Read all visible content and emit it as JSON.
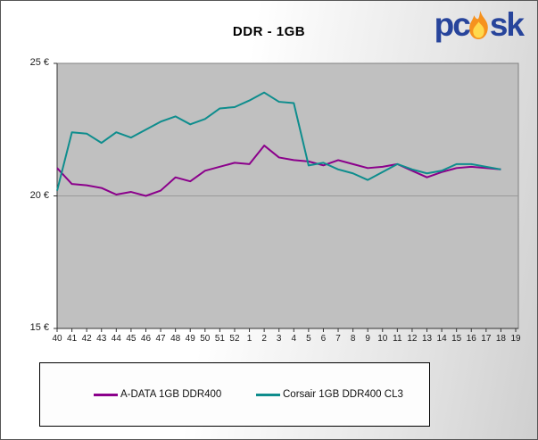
{
  "header": {
    "title": "DDR - 1GB",
    "logo": {
      "part1": "pc",
      "part2": "sk",
      "text_color": "#27449B",
      "flame_outer": "#F6921E",
      "flame_inner": "#FFD94D"
    }
  },
  "chart_data": {
    "type": "line",
    "title": "DDR - 1GB",
    "categories": [
      "40",
      "41",
      "42",
      "43",
      "44",
      "45",
      "46",
      "47",
      "48",
      "49",
      "50",
      "51",
      "52",
      "1",
      "2",
      "3",
      "4",
      "5",
      "6",
      "7",
      "8",
      "9",
      "10",
      "11",
      "12",
      "13",
      "14",
      "15",
      "16",
      "17",
      "18",
      "19"
    ],
    "series": [
      {
        "name": "A-DATA 1GB DDR400",
        "color": "#8B008B",
        "values": [
          21.05,
          20.45,
          20.4,
          20.3,
          20.05,
          20.15,
          20.0,
          20.2,
          20.7,
          20.55,
          20.95,
          21.1,
          21.25,
          21.2,
          21.9,
          21.45,
          21.35,
          21.3,
          21.15,
          21.35,
          21.2,
          21.05,
          21.1,
          21.2,
          20.95,
          20.7,
          20.9,
          21.05,
          21.1,
          21.05,
          21.0,
          null
        ]
      },
      {
        "name": "Corsair 1GB DDR400 CL3",
        "color": "#0E8D8D",
        "values": [
          20.2,
          22.4,
          22.35,
          22.0,
          22.4,
          22.2,
          22.5,
          22.8,
          23.0,
          22.7,
          22.9,
          23.3,
          23.35,
          23.6,
          23.9,
          23.55,
          23.5,
          21.15,
          21.25,
          21.0,
          20.85,
          20.6,
          20.9,
          21.2,
          21.0,
          20.85,
          20.95,
          21.2,
          21.2,
          21.1,
          21.0,
          null
        ]
      }
    ],
    "xlabel": "",
    "ylabel": "",
    "ylim": [
      15,
      25
    ],
    "y_ticks": [
      {
        "value": 25,
        "label": "25 €"
      },
      {
        "value": 20,
        "label": "20 €"
      },
      {
        "value": 15,
        "label": "15 €"
      }
    ],
    "grid_values": [
      20
    ],
    "grid_on": true,
    "legend_position": "bottom",
    "plot_bg": "#C0C0C0",
    "plot_border": "#7F7F7F",
    "axis_color": "#333333",
    "grid_color": "#999999"
  }
}
